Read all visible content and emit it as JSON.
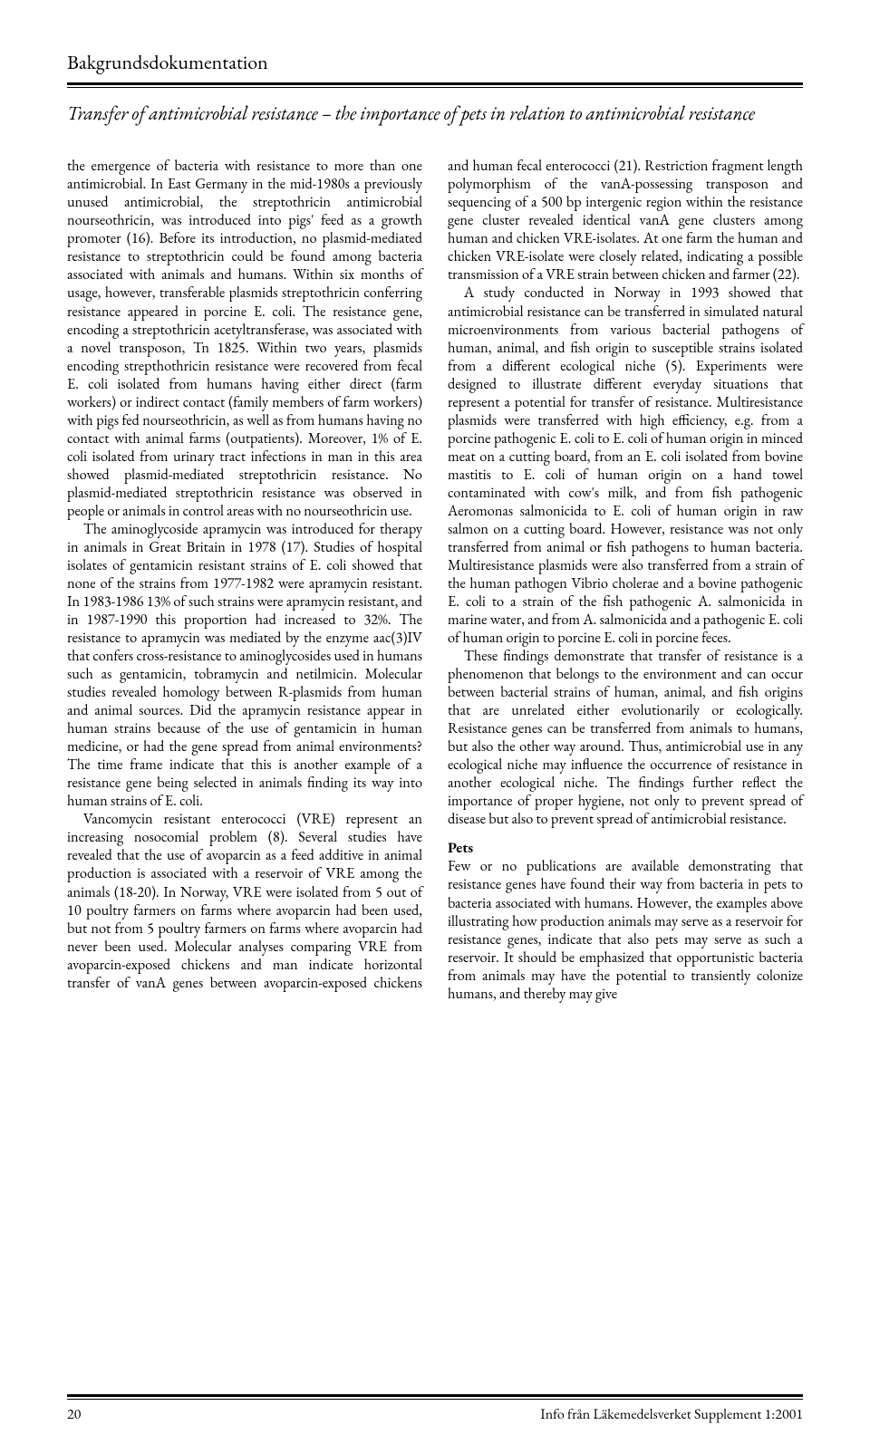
{
  "running_head": "Bakgrundsdokumentation",
  "article_title": "Transfer of antimicrobial resistance – the importance of pets in relation to antimicrobial resistance",
  "body": {
    "p1": "the emergence of bacteria with resistance to more than one antimicrobial. In East Germany in the mid-1980s a previously unused antimicrobial, the streptothricin antimicrobial nourseothricin, was introduced into pigs' feed as a growth promoter (16). Before its introduction, no plasmid-mediated resistance to streptothricin could be found among bacteria associated with animals and humans. Within six months of usage, however, transferable plasmids streptothricin conferring resistance appeared in porcine E. coli. The resistance gene, encoding a streptothricin acetyltransferase, was associated with a novel transposon, Tn 1825. Within two years, plasmids encoding strepthothricin resistance were recovered from fecal E. coli isolated from humans having either direct (farm workers) or indirect contact (family members of farm workers) with pigs fed nourseothricin, as well as from humans having no contact with animal farms (outpatients). Moreover, 1% of E. coli isolated from urinary tract infections in man in this area showed plasmid-mediated streptothricin resistance. No plasmid-mediated streptothricin resistance was observed in people or animals in control areas with no nourseothricin use.",
    "p2": "The aminoglycoside apramycin was introduced for therapy in animals in Great Britain in 1978 (17). Studies of hospital isolates of gentamicin resistant strains of E. coli showed that none of the strains from 1977-1982 were apramycin resistant. In 1983-1986 13% of such strains were apramycin resistant, and in 1987-1990 this proportion had increased to 32%. The resistance to apramycin was mediated by the enzyme aac(3)IV that confers cross-resistance to aminoglycosides used in humans such as gentamicin, tobramycin and netilmicin. Molecular studies revealed homology between R-plasmids from human and animal sources. Did the apramycin resistance appear in human strains because of the use of gentamicin in human medicine, or had the gene spread from animal environments? The time frame indicate that this is another example of a resistance gene being selected in animals finding its way into human strains of E. coli.",
    "p3": "Vancomycin resistant enterococci (VRE) represent an increasing nosocomial problem (8). Several studies have revealed that the use of avoparcin as a feed additive in animal production is associated with a reservoir of VRE among the animals (18-20). In Norway, VRE were isolated from 5 out of 10 poultry farmers on farms where avoparcin had been used, but not from 5 poultry farmers on farms where avoparcin had never been used. Molecular analyses comparing VRE from avoparcin-exposed chickens and man indicate horizontal transfer of vanA genes between avoparcin-exposed chickens and human fecal enterococci (21). Restriction fragment length polymorphism of the vanA-possessing transposon and sequencing of a 500 bp intergenic region within the resistance gene cluster revealed identical vanA gene clusters among human and chicken VRE-isolates. At one farm the human and chicken VRE-isolate were closely related, indicating a possible transmission of a VRE strain between chicken and farmer (22).",
    "p4": "A study conducted in Norway in 1993 showed that antimicrobial resistance can be transferred in simulated natural microenvironments from various bacterial pathogens of human, animal, and fish origin to susceptible strains isolated from a different ecological niche (5). Experiments were designed to illustrate different everyday situations that represent a potential for transfer of resistance. Multiresistance plasmids were transferred with high efficiency, e.g. from a porcine pathogenic E. coli to E. coli of human origin in minced meat on a cutting board, from an E. coli isolated from bovine mastitis to E. coli of human origin on a hand towel contaminated with cow's milk, and from fish pathogenic Aeromonas salmonicida to E. coli of human origin in raw salmon on a cutting board. However, resistance was not only transferred from animal or fish pathogens to human bacteria. Multiresistance plasmids were also transferred from a strain of the human pathogen Vibrio cholerae and a bovine pathogenic E. coli to a strain of the fish pathogenic A. salmonicida in marine water, and from A. salmonicida and a pathogenic E. coli of human origin to porcine E. coli in porcine feces.",
    "p5": "These findings demonstrate that transfer of resistance is a phenomenon that belongs to the environment and can occur between bacterial strains of human, animal, and fish origins that are unrelated either evolutionarily or ecologically. Resistance genes can be transferred from animals to humans, but also the other way around. Thus, antimicrobial use in any ecological niche may influence the occurrence of resistance in another ecological niche. The findings further reflect the importance of proper hygiene, not only to prevent spread of disease but also to prevent spread of antimicrobial resistance.",
    "pets_head": "Pets",
    "p6": "Few or no publications are available demonstrating that resistance genes have found their way from bacteria in pets to bacteria associated with humans. However, the examples above illustrating how production animals may serve as a reservoir for resistance genes, indicate that also pets may serve as such a reservoir. It should be emphasized that opportunistic bacteria from animals may have the potential to transiently colonize humans, and thereby may give"
  },
  "footer": {
    "page": "20",
    "journal": "Info från Läkemedelsverket Supplement 1:2001"
  }
}
